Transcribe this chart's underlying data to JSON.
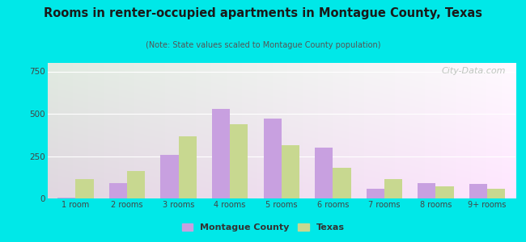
{
  "categories": [
    "1 room",
    "2 rooms",
    "3 rooms",
    "4 rooms",
    "5 rooms",
    "6 rooms",
    "7 rooms",
    "8 rooms",
    "9+ rooms"
  ],
  "montague": [
    5,
    90,
    255,
    530,
    470,
    300,
    55,
    90,
    85
  ],
  "texas": [
    115,
    160,
    365,
    440,
    315,
    180,
    115,
    70,
    55
  ],
  "montague_color": "#c8a0e0",
  "texas_color": "#c8d890",
  "title": "Rooms in renter-occupied apartments in Montague County, Texas",
  "subtitle": "(Note: State values scaled to Montague County population)",
  "title_color": "#1a1a1a",
  "subtitle_color": "#555555",
  "bg_outer": "#00e8e8",
  "ylabel_ticks": [
    0,
    250,
    500,
    750
  ],
  "ylim": [
    0,
    800
  ],
  "bar_width": 0.35,
  "watermark": "City-Data.com",
  "legend_montague": "Montague County",
  "legend_texas": "Texas"
}
